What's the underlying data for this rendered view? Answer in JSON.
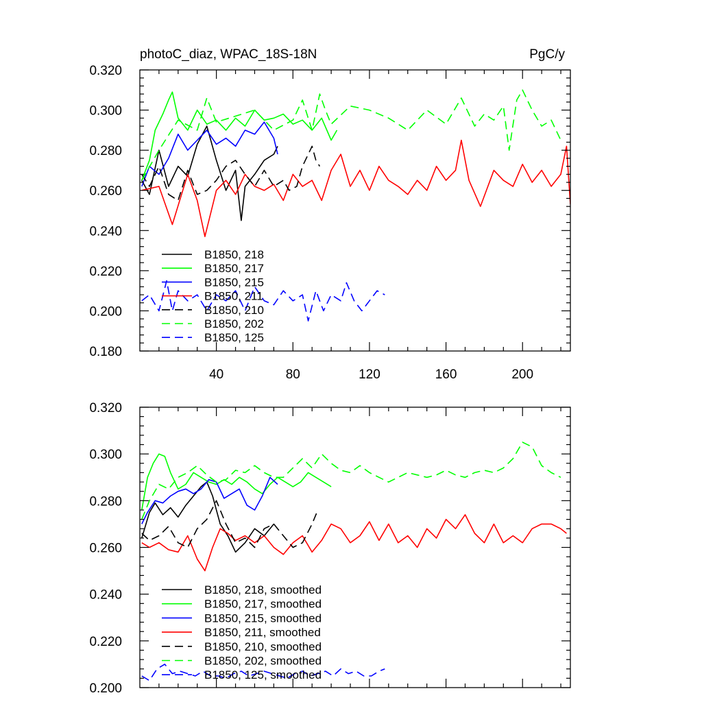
{
  "chart_data": [
    {
      "type": "line",
      "title": "photoC_diaz, WPAC_18S-18N",
      "units": "PgC/y",
      "xlabel": "",
      "ylabel": "",
      "xlim": [
        0,
        225
      ],
      "ylim": [
        0.18,
        0.32
      ],
      "x_ticks": [
        40,
        80,
        120,
        160,
        200
      ],
      "x_tick_labels": [
        "40",
        "80",
        "120",
        "160",
        "200"
      ],
      "y_ticks": [
        0.18,
        0.2,
        0.22,
        0.24,
        0.26,
        0.28,
        0.3,
        0.32
      ],
      "y_tick_labels": [
        "0.180",
        "0.200",
        "0.220",
        "0.240",
        "0.260",
        "0.280",
        "0.300",
        "0.320"
      ],
      "legend_position": "lower-left",
      "series": [
        {
          "name": "B1850, 218",
          "color": "#000000",
          "dash": "solid",
          "x": [
            1,
            5,
            10,
            15,
            20,
            25,
            30,
            35,
            40,
            45,
            50,
            53,
            55,
            60,
            65,
            70,
            72
          ],
          "y": [
            0.265,
            0.258,
            0.28,
            0.262,
            0.272,
            0.267,
            0.283,
            0.292,
            0.275,
            0.26,
            0.27,
            0.245,
            0.262,
            0.268,
            0.275,
            0.278,
            0.282
          ]
        },
        {
          "name": "B1850, 217",
          "color": "#00ff00",
          "dash": "solid",
          "x": [
            1,
            5,
            8,
            12,
            15,
            17,
            20,
            25,
            30,
            35,
            40,
            45,
            50,
            55,
            60,
            65,
            70,
            75,
            80,
            85,
            90,
            95,
            100,
            103
          ],
          "y": [
            0.265,
            0.275,
            0.29,
            0.298,
            0.305,
            0.309,
            0.296,
            0.29,
            0.3,
            0.293,
            0.295,
            0.29,
            0.296,
            0.292,
            0.3,
            0.295,
            0.296,
            0.298,
            0.293,
            0.295,
            0.29,
            0.296,
            0.285,
            0.29
          ]
        },
        {
          "name": "B1850, 215",
          "color": "#0000ff",
          "dash": "solid",
          "x": [
            1,
            5,
            10,
            15,
            20,
            25,
            30,
            35,
            40,
            45,
            50,
            55,
            60,
            65,
            70,
            72
          ],
          "y": [
            0.262,
            0.272,
            0.268,
            0.276,
            0.288,
            0.28,
            0.285,
            0.29,
            0.283,
            0.286,
            0.282,
            0.29,
            0.288,
            0.294,
            0.286,
            0.278
          ]
        },
        {
          "name": "B1850, 211",
          "color": "#ff0000",
          "dash": "solid",
          "x": [
            1,
            10,
            17,
            25,
            30,
            34,
            40,
            45,
            50,
            55,
            60,
            65,
            70,
            75,
            80,
            85,
            90,
            95,
            100,
            105,
            110,
            115,
            120,
            125,
            130,
            135,
            140,
            145,
            150,
            155,
            160,
            165,
            168,
            172,
            178,
            185,
            190,
            195,
            200,
            205,
            210,
            215,
            220,
            223,
            225
          ],
          "y": [
            0.26,
            0.262,
            0.243,
            0.268,
            0.255,
            0.237,
            0.26,
            0.265,
            0.258,
            0.268,
            0.262,
            0.26,
            0.263,
            0.255,
            0.268,
            0.262,
            0.265,
            0.255,
            0.27,
            0.278,
            0.262,
            0.27,
            0.26,
            0.272,
            0.265,
            0.262,
            0.258,
            0.265,
            0.26,
            0.272,
            0.265,
            0.27,
            0.285,
            0.265,
            0.252,
            0.27,
            0.265,
            0.262,
            0.273,
            0.264,
            0.27,
            0.262,
            0.268,
            0.282,
            0.253
          ]
        },
        {
          "name": "B1850, 210",
          "color": "#000000",
          "dash": "dashed",
          "x": [
            1,
            5,
            10,
            15,
            20,
            25,
            30,
            35,
            40,
            45,
            50,
            55,
            60,
            65,
            70,
            75,
            78,
            82,
            85,
            90,
            92,
            94
          ],
          "y": [
            0.268,
            0.262,
            0.272,
            0.258,
            0.255,
            0.27,
            0.258,
            0.26,
            0.265,
            0.272,
            0.275,
            0.268,
            0.262,
            0.27,
            0.262,
            0.265,
            0.26,
            0.262,
            0.272,
            0.282,
            0.275,
            0.272
          ]
        },
        {
          "name": "B1850, 202",
          "color": "#00ff00",
          "dash": "dashed",
          "x": [
            1,
            10,
            20,
            30,
            35,
            40,
            50,
            60,
            70,
            80,
            85,
            90,
            94,
            97,
            100,
            110,
            120,
            130,
            140,
            150,
            160,
            168,
            175,
            180,
            185,
            190,
            193,
            197,
            200,
            205,
            210,
            215,
            220
          ],
          "y": [
            0.265,
            0.28,
            0.295,
            0.29,
            0.306,
            0.294,
            0.297,
            0.3,
            0.29,
            0.295,
            0.305,
            0.29,
            0.308,
            0.3,
            0.293,
            0.302,
            0.3,
            0.296,
            0.29,
            0.3,
            0.293,
            0.306,
            0.292,
            0.298,
            0.295,
            0.302,
            0.28,
            0.305,
            0.31,
            0.3,
            0.292,
            0.295,
            0.285
          ]
        },
        {
          "name": "B1850, 125",
          "color": "#0000ff",
          "dash": "dashed",
          "x": [
            1,
            5,
            10,
            14,
            17,
            20,
            25,
            30,
            35,
            40,
            45,
            50,
            55,
            60,
            65,
            70,
            75,
            80,
            85,
            88,
            92,
            96,
            100,
            105,
            108,
            112,
            116,
            120,
            124,
            128
          ],
          "y": [
            0.205,
            0.208,
            0.2,
            0.215,
            0.2,
            0.21,
            0.205,
            0.208,
            0.2,
            0.208,
            0.205,
            0.21,
            0.2,
            0.212,
            0.205,
            0.203,
            0.21,
            0.205,
            0.208,
            0.195,
            0.21,
            0.2,
            0.208,
            0.205,
            0.214,
            0.205,
            0.2,
            0.205,
            0.21,
            0.208
          ]
        }
      ]
    },
    {
      "type": "line",
      "title": "",
      "units": "",
      "xlabel": "",
      "ylabel": "",
      "xlim": [
        0,
        225
      ],
      "ylim": [
        0.2,
        0.32
      ],
      "x_ticks": [
        40,
        80,
        120,
        160,
        200
      ],
      "x_tick_labels": [],
      "y_ticks": [
        0.2,
        0.22,
        0.24,
        0.26,
        0.28,
        0.3,
        0.32
      ],
      "y_tick_labels": [
        "0.200",
        "0.220",
        "0.240",
        "0.260",
        "0.280",
        "0.300",
        "0.320"
      ],
      "legend_position": "lower-left",
      "series": [
        {
          "name": "B1850, 218, smoothed",
          "color": "#000000",
          "dash": "solid",
          "x": [
            1,
            5,
            8,
            12,
            16,
            20,
            24,
            28,
            32,
            35,
            38,
            42,
            46,
            50,
            55,
            60,
            65,
            70
          ],
          "y": [
            0.264,
            0.275,
            0.279,
            0.274,
            0.277,
            0.273,
            0.278,
            0.282,
            0.286,
            0.288,
            0.282,
            0.27,
            0.265,
            0.258,
            0.262,
            0.268,
            0.265,
            0.27
          ]
        },
        {
          "name": "B1850, 217, smoothed",
          "color": "#00ff00",
          "dash": "solid",
          "x": [
            1,
            4,
            7,
            10,
            13,
            16,
            20,
            24,
            28,
            32,
            36,
            40,
            44,
            48,
            52,
            56,
            60,
            64,
            68,
            72,
            76,
            80,
            84,
            88,
            92,
            96,
            100
          ],
          "y": [
            0.276,
            0.29,
            0.296,
            0.3,
            0.299,
            0.292,
            0.285,
            0.287,
            0.292,
            0.29,
            0.288,
            0.287,
            0.289,
            0.287,
            0.29,
            0.288,
            0.285,
            0.283,
            0.287,
            0.29,
            0.288,
            0.286,
            0.288,
            0.292,
            0.29,
            0.288,
            0.286
          ]
        },
        {
          "name": "B1850, 215, smoothed",
          "color": "#0000ff",
          "dash": "solid",
          "x": [
            1,
            4,
            8,
            12,
            16,
            20,
            24,
            28,
            32,
            36,
            40,
            44,
            48,
            52,
            56,
            60,
            64,
            68,
            72
          ],
          "y": [
            0.27,
            0.275,
            0.28,
            0.279,
            0.282,
            0.284,
            0.285,
            0.283,
            0.285,
            0.289,
            0.288,
            0.281,
            0.283,
            0.285,
            0.278,
            0.276,
            0.282,
            0.29,
            0.287
          ]
        },
        {
          "name": "B1850, 211, smoothed",
          "color": "#ff0000",
          "dash": "solid",
          "x": [
            1,
            5,
            10,
            15,
            20,
            25,
            30,
            34,
            38,
            42,
            46,
            50,
            55,
            60,
            65,
            70,
            75,
            80,
            85,
            90,
            95,
            100,
            105,
            110,
            115,
            120,
            125,
            130,
            135,
            140,
            145,
            150,
            155,
            160,
            165,
            170,
            175,
            180,
            185,
            190,
            195,
            200,
            205,
            210,
            215,
            220,
            223
          ],
          "y": [
            0.262,
            0.26,
            0.262,
            0.259,
            0.258,
            0.265,
            0.255,
            0.25,
            0.26,
            0.268,
            0.266,
            0.263,
            0.265,
            0.262,
            0.265,
            0.26,
            0.257,
            0.262,
            0.265,
            0.258,
            0.263,
            0.27,
            0.268,
            0.262,
            0.265,
            0.271,
            0.263,
            0.27,
            0.262,
            0.265,
            0.26,
            0.268,
            0.264,
            0.272,
            0.268,
            0.274,
            0.266,
            0.262,
            0.27,
            0.262,
            0.265,
            0.262,
            0.268,
            0.27,
            0.27,
            0.268,
            0.266
          ]
        },
        {
          "name": "B1850, 210, smoothed",
          "color": "#000000",
          "dash": "dashed",
          "x": [
            1,
            5,
            10,
            15,
            20,
            25,
            30,
            35,
            40,
            45,
            50,
            55,
            60,
            65,
            70,
            75,
            80,
            85,
            90,
            93
          ],
          "y": [
            0.266,
            0.263,
            0.265,
            0.269,
            0.262,
            0.26,
            0.268,
            0.272,
            0.28,
            0.27,
            0.262,
            0.264,
            0.26,
            0.268,
            0.27,
            0.265,
            0.26,
            0.262,
            0.27,
            0.276
          ]
        },
        {
          "name": "B1850, 202, smoothed",
          "color": "#00ff00",
          "dash": "dashed",
          "x": [
            1,
            5,
            10,
            15,
            20,
            25,
            30,
            35,
            40,
            45,
            50,
            55,
            60,
            65,
            70,
            75,
            80,
            85,
            90,
            95,
            100,
            105,
            110,
            115,
            120,
            125,
            130,
            135,
            140,
            145,
            150,
            155,
            160,
            165,
            170,
            175,
            180,
            185,
            190,
            195,
            200,
            205,
            210,
            215,
            220
          ],
          "y": [
            0.272,
            0.28,
            0.287,
            0.285,
            0.29,
            0.292,
            0.295,
            0.291,
            0.288,
            0.289,
            0.293,
            0.292,
            0.295,
            0.292,
            0.29,
            0.29,
            0.294,
            0.298,
            0.294,
            0.3,
            0.296,
            0.293,
            0.292,
            0.295,
            0.292,
            0.29,
            0.288,
            0.29,
            0.292,
            0.291,
            0.29,
            0.291,
            0.293,
            0.291,
            0.29,
            0.292,
            0.293,
            0.292,
            0.294,
            0.298,
            0.305,
            0.303,
            0.295,
            0.292,
            0.29
          ]
        },
        {
          "name": "B1850, 125, smoothed",
          "color": "#0000ff",
          "dash": "dashed",
          "x": [
            1,
            5,
            9,
            13,
            17,
            21,
            25,
            29,
            33,
            37,
            41,
            45,
            49,
            53,
            57,
            61,
            65,
            69,
            73,
            77,
            81,
            85,
            89,
            93,
            97,
            101,
            105,
            109,
            113,
            117,
            121,
            125,
            128
          ],
          "y": [
            0.205,
            0.203,
            0.208,
            0.21,
            0.206,
            0.207,
            0.206,
            0.205,
            0.207,
            0.205,
            0.205,
            0.204,
            0.206,
            0.207,
            0.205,
            0.206,
            0.207,
            0.206,
            0.205,
            0.204,
            0.206,
            0.207,
            0.205,
            0.206,
            0.207,
            0.205,
            0.208,
            0.206,
            0.207,
            0.205,
            0.205,
            0.207,
            0.208
          ]
        }
      ]
    }
  ]
}
